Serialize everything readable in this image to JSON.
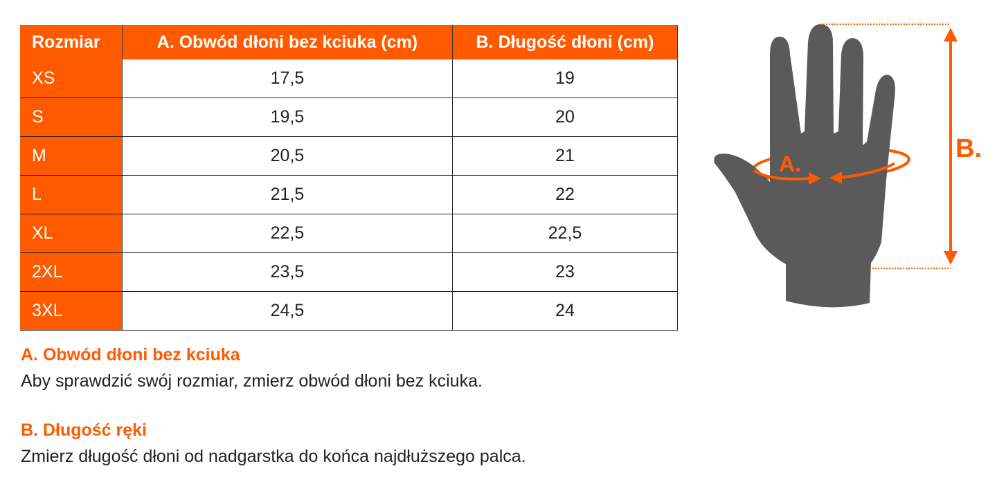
{
  "colors": {
    "accent": "#FF5A00",
    "hand": "#5a5a5a",
    "text": "#222222"
  },
  "table": {
    "headers": [
      "Rozmiar",
      "A. Obwód dłoni bez kciuka (cm)",
      "B. Długość dłoni (cm)"
    ],
    "rows": [
      [
        "XS",
        "17,5",
        "19"
      ],
      [
        "S",
        "19,5",
        "20"
      ],
      [
        "M",
        "20,5",
        "21"
      ],
      [
        "L",
        "21,5",
        "22"
      ],
      [
        "XL",
        "22,5",
        "22,5"
      ],
      [
        "2XL",
        "23,5",
        "23"
      ],
      [
        "3XL",
        "24,5",
        "24"
      ]
    ]
  },
  "diagram": {
    "label_a": "A.",
    "label_b": "B.",
    "icon": "hand-icon"
  },
  "notes": [
    {
      "title": "A. Obwód dłoni bez kciuka",
      "text": "Aby sprawdzić swój rozmiar, zmierz obwód dłoni bez kciuka."
    },
    {
      "title": "B. Długość ręki",
      "text": "Zmierz długość dłoni od nadgarstka do końca najdłuższego palca."
    }
  ]
}
